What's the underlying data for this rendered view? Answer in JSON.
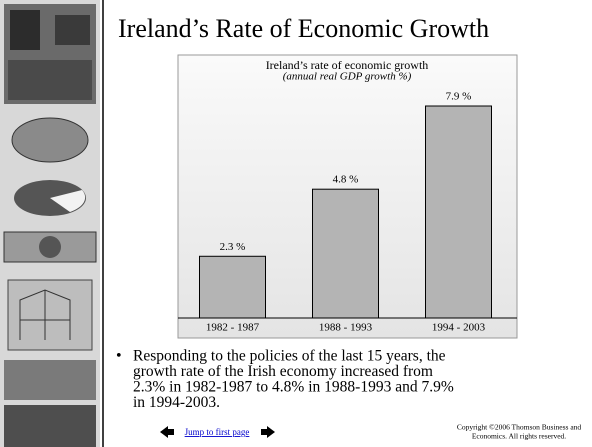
{
  "slide_title": "Ireland’s Rate of Economic Growth",
  "chart_data": {
    "type": "bar",
    "title": "Ireland’s rate of economic growth",
    "subtitle": "(annual real GDP growth %)",
    "categories": [
      "1982 - 1987",
      "1988 - 1993",
      "1994 - 2003"
    ],
    "values": [
      2.3,
      4.8,
      7.9
    ],
    "value_labels": [
      "2.3 %",
      "4.8 %",
      "7.9 %"
    ],
    "color": "#b4b4b4"
  },
  "bullet_lines": [
    "Responding to the policies of the last 15 years, the",
    "growth rate of the Irish economy increased from",
    "2.3% in 1982-1987 to 4.8% in 1988-1993 and 7.9%",
    "in 1994-2003."
  ],
  "footer": {
    "link": "Jump to first page",
    "copyright": [
      "Copyright ©2006  Thomson Business and",
      "Economics. All rights reserved."
    ]
  }
}
